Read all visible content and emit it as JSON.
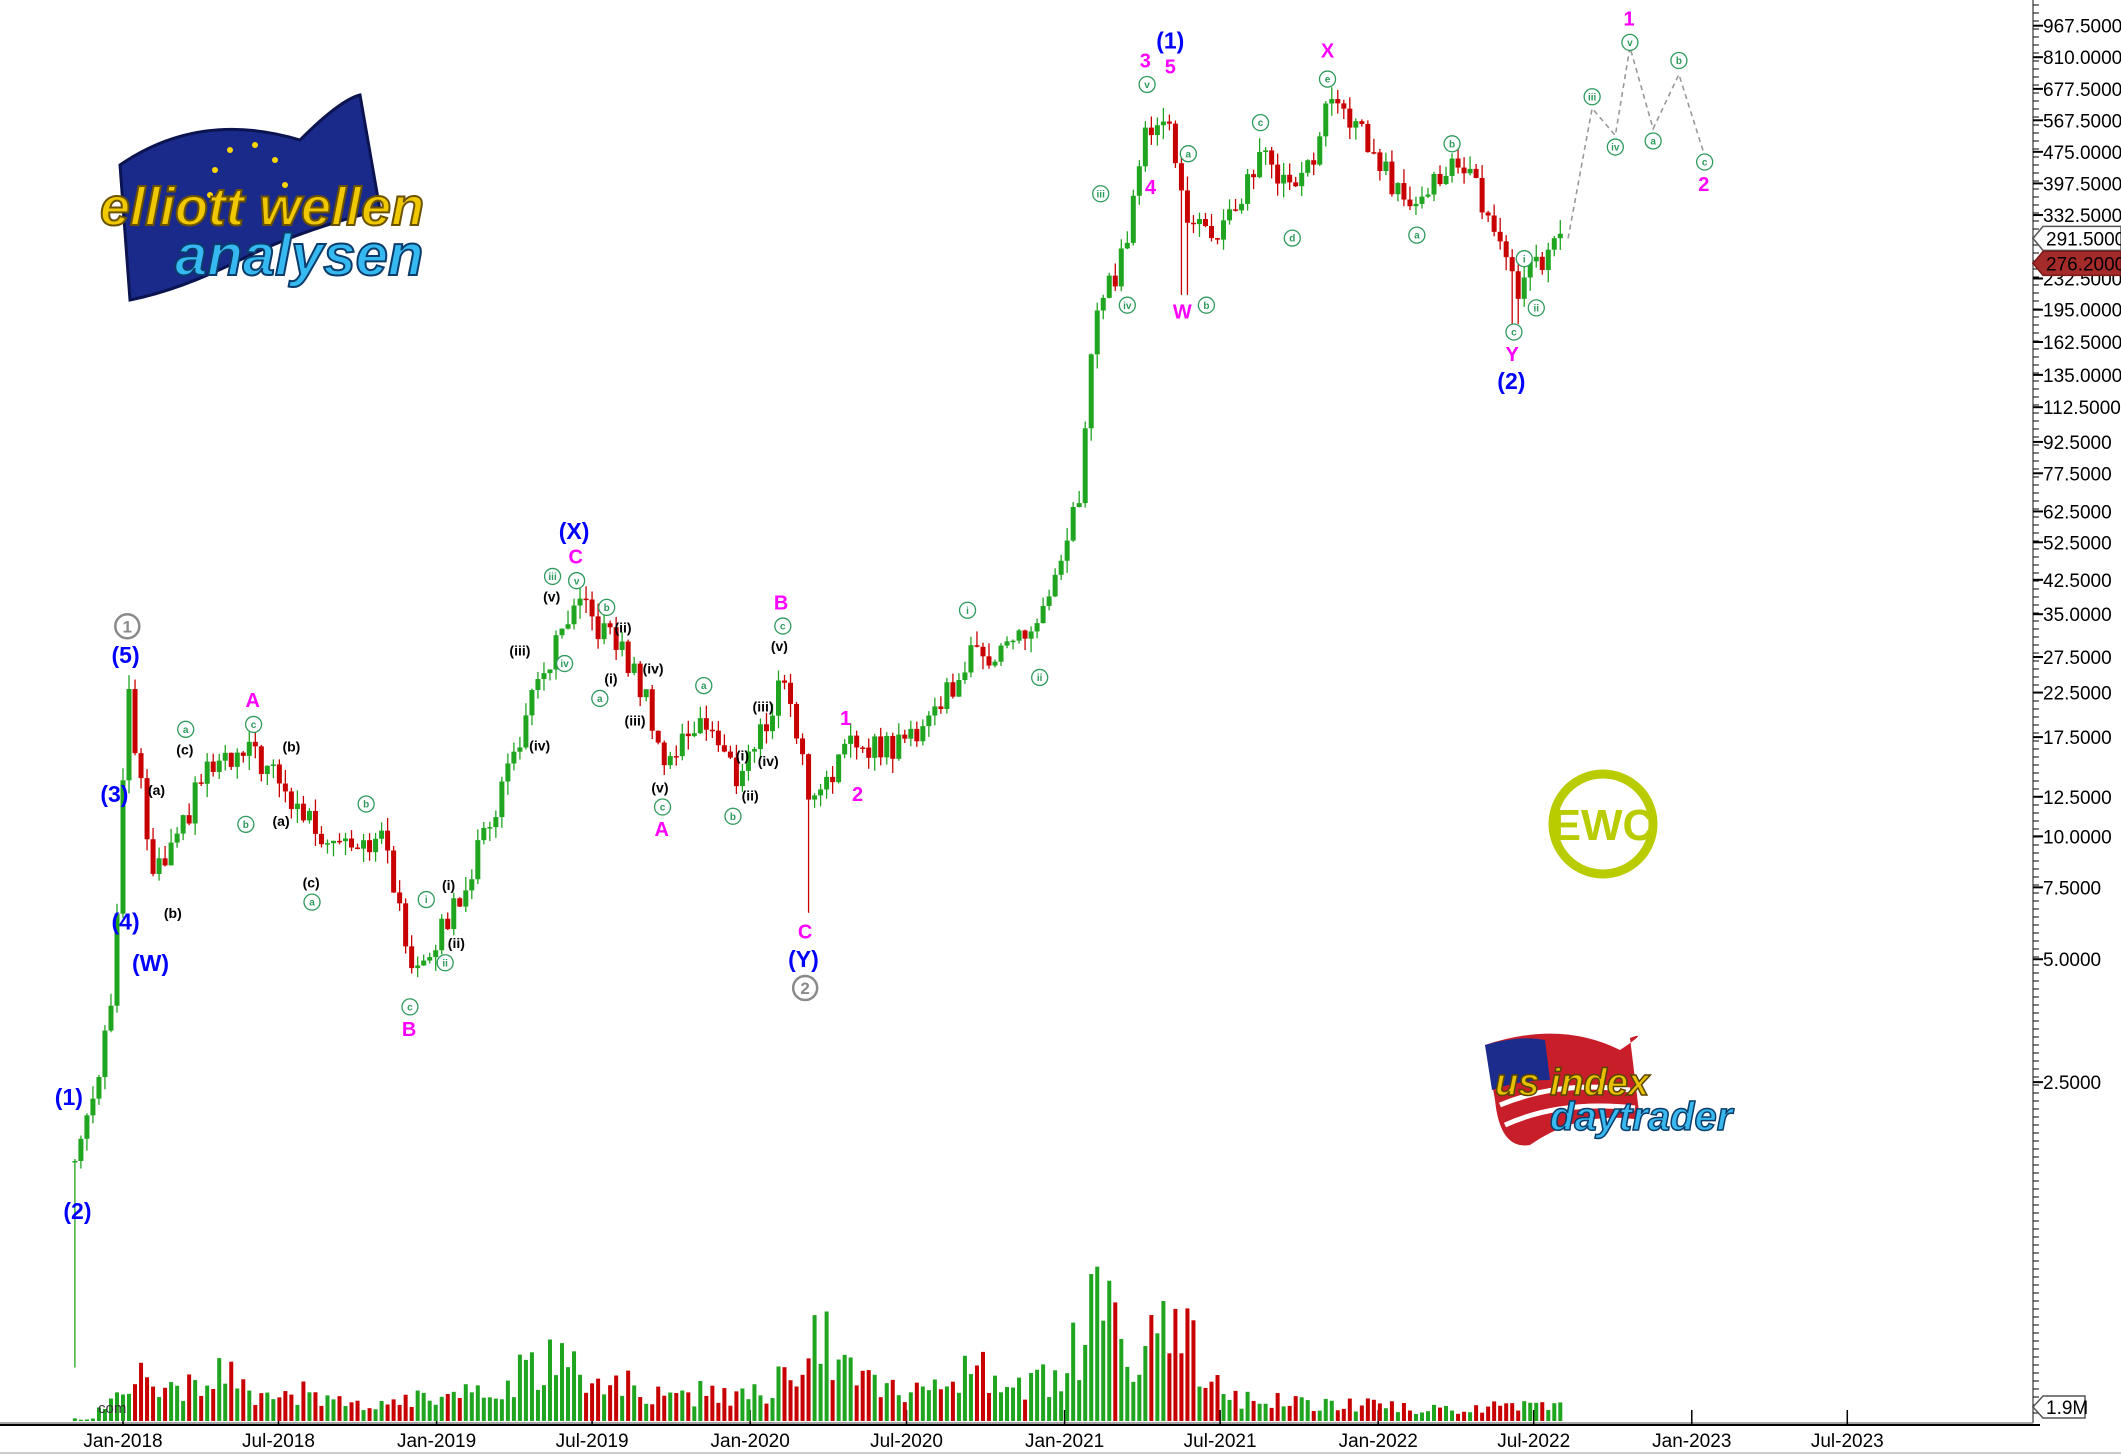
{
  "chart_data": {
    "type": "candlestick",
    "scale": "log",
    "grid": false,
    "price_axis": {
      "side": "right",
      "tick_labels": [
        "967.5000",
        "810.0000",
        "677.5000",
        "567.5000",
        "475.0000",
        "397.5000",
        "332.5000",
        "232.5000",
        "195.0000",
        "162.5000",
        "135.0000",
        "112.5000",
        "92.5000",
        "77.5000",
        "62.5000",
        "52.5000",
        "42.5000",
        "35.0000",
        "27.5000",
        "22.5000",
        "17.5000",
        "12.5000",
        "10.0000",
        "7.5000",
        "5.0000",
        "2.5000"
      ],
      "ylim": [
        0.5,
        1100
      ]
    },
    "date_axis": {
      "tick_labels": [
        "Jan-2018",
        "Jul-2018",
        "Jan-2019",
        "Jul-2019",
        "Jan-2020",
        "Jul-2020",
        "Jan-2021",
        "Jul-2021",
        "Jan-2022",
        "Jul-2022",
        "Jan-2023",
        "Jul-2023"
      ],
      "ticks": [
        "2018-01-01",
        "2018-07-01",
        "2019-01-01",
        "2019-07-01",
        "2020-01-01",
        "2020-07-01",
        "2021-01-01",
        "2021-07-01",
        "2022-01-01",
        "2022-07-01",
        "2023-01-01",
        "2023-07-01"
      ]
    },
    "price_markers": [
      {
        "label": "291.5000",
        "value": 291.5,
        "color": "#ffffff"
      },
      {
        "label": "276.2000",
        "value": 276.2,
        "color": "#a52a2a"
      }
    ],
    "volume_marker": {
      "label": "1.9M",
      "value": 1.9
    },
    "volume_label_partial": "com",
    "price_path": [
      [
        "2017-11-06",
        1.6
      ],
      [
        "2017-12-05",
        2.8
      ],
      [
        "2017-12-22",
        4.6
      ],
      [
        "2018-01-06",
        22.8
      ],
      [
        "2018-02-05",
        7.8
      ],
      [
        "2018-03-05",
        9.5
      ],
      [
        "2018-04-05",
        14.4
      ],
      [
        "2018-05-05",
        15
      ],
      [
        "2018-06-05",
        16
      ],
      [
        "2018-07-10",
        12.5
      ],
      [
        "2018-08-20",
        10.2
      ],
      [
        "2018-09-25",
        10
      ],
      [
        "2018-11-05",
        9.5
      ],
      [
        "2018-11-25",
        5.4
      ],
      [
        "2018-12-05",
        4.9
      ],
      [
        "2019-01-05",
        5.7
      ],
      [
        "2019-02-05",
        7.8
      ],
      [
        "2019-03-05",
        11
      ],
      [
        "2019-04-05",
        17
      ],
      [
        "2019-05-05",
        25
      ],
      [
        "2019-06-05",
        33.4
      ],
      [
        "2019-06-20",
        36
      ],
      [
        "2019-08-05",
        28.5
      ],
      [
        "2019-09-05",
        21
      ],
      [
        "2019-09-25",
        14.8
      ],
      [
        "2019-11-05",
        20
      ],
      [
        "2019-12-15",
        14
      ],
      [
        "2020-01-15",
        18
      ],
      [
        "2020-02-10",
        25
      ],
      [
        "2020-03-10",
        12.5
      ],
      [
        "2020-04-05",
        14.6
      ],
      [
        "2020-05-05",
        17
      ],
      [
        "2020-06-20",
        16.5
      ],
      [
        "2020-07-20",
        19
      ],
      [
        "2020-08-20",
        23
      ],
      [
        "2020-09-10",
        27
      ],
      [
        "2020-10-25",
        29.5
      ],
      [
        "2020-11-25",
        32
      ],
      [
        "2020-12-25",
        42
      ],
      [
        "2021-01-20",
        71.7
      ],
      [
        "2021-02-05",
        193
      ],
      [
        "2021-03-05",
        240
      ],
      [
        "2021-04-05",
        521
      ],
      [
        "2021-05-01",
        630
      ],
      [
        "2021-05-20",
        330
      ],
      [
        "2021-06-15",
        300
      ],
      [
        "2021-07-10",
        310
      ],
      [
        "2021-08-15",
        470
      ],
      [
        "2021-09-20",
        390
      ],
      [
        "2021-10-20",
        470
      ],
      [
        "2021-11-05",
        630
      ],
      [
        "2021-12-15",
        520
      ],
      [
        "2022-01-25",
        370
      ],
      [
        "2022-02-25",
        390
      ],
      [
        "2022-03-25",
        440
      ],
      [
        "2022-04-25",
        390
      ],
      [
        "2022-05-20",
        295
      ],
      [
        "2022-06-10",
        220
      ],
      [
        "2022-07-05",
        245
      ],
      [
        "2022-08-05",
        290
      ]
    ],
    "notable_lows": [
      [
        "2017-11-06",
        0.5
      ],
      [
        "2020-03-10",
        6.5
      ],
      [
        "2021-05-20",
        212
      ],
      [
        "2022-06-10",
        180
      ]
    ],
    "volume_monthly_millions": [
      [
        "2017-11",
        0.3
      ],
      [
        "2017-12",
        3
      ],
      [
        "2018-01",
        6
      ],
      [
        "2018-02",
        4
      ],
      [
        "2018-03",
        5
      ],
      [
        "2018-04",
        7
      ],
      [
        "2018-05",
        6
      ],
      [
        "2018-06",
        4
      ],
      [
        "2018-07",
        4
      ],
      [
        "2018-08",
        3
      ],
      [
        "2018-09",
        2.5
      ],
      [
        "2018-10",
        2
      ],
      [
        "2018-11",
        3
      ],
      [
        "2018-12",
        3.5
      ],
      [
        "2019-01",
        3
      ],
      [
        "2019-02",
        4
      ],
      [
        "2019-03",
        5
      ],
      [
        "2019-04",
        7
      ],
      [
        "2019-05",
        8
      ],
      [
        "2019-06",
        7
      ],
      [
        "2019-07",
        6.5
      ],
      [
        "2019-08",
        5
      ],
      [
        "2019-09",
        4
      ],
      [
        "2019-10",
        3.5
      ],
      [
        "2019-11",
        4
      ],
      [
        "2019-12",
        3.5
      ],
      [
        "2020-01",
        4
      ],
      [
        "2020-02",
        6
      ],
      [
        "2020-03",
        11
      ],
      [
        "2020-04",
        7
      ],
      [
        "2020-05",
        5
      ],
      [
        "2020-06",
        4
      ],
      [
        "2020-07",
        5
      ],
      [
        "2020-08",
        6
      ],
      [
        "2020-09",
        8
      ],
      [
        "2020-10",
        4.5
      ],
      [
        "2020-11",
        5
      ],
      [
        "2020-12",
        6
      ],
      [
        "2021-01",
        10
      ],
      [
        "2021-02",
        16
      ],
      [
        "2021-03",
        8
      ],
      [
        "2021-04",
        12
      ],
      [
        "2021-05",
        14
      ],
      [
        "2021-06",
        5
      ],
      [
        "2021-07",
        3
      ],
      [
        "2021-08",
        3
      ],
      [
        "2021-09",
        2.8
      ],
      [
        "2021-10",
        2.5
      ],
      [
        "2021-11",
        2.5
      ],
      [
        "2021-12",
        2.2
      ],
      [
        "2022-01",
        2
      ],
      [
        "2022-02",
        1.8
      ],
      [
        "2022-03",
        1.6
      ],
      [
        "2022-04",
        1.8
      ],
      [
        "2022-05",
        2
      ],
      [
        "2022-06",
        2.2
      ],
      [
        "2022-07",
        1.9
      ],
      [
        "2022-08",
        1.5
      ]
    ],
    "projection": [
      [
        "2022-08-10",
        291.5
      ],
      [
        "2022-09-07",
        607
      ],
      [
        "2022-10-04",
        521
      ],
      [
        "2022-10-21",
        857
      ],
      [
        "2022-11-17",
        541
      ],
      [
        "2022-12-17",
        735
      ],
      [
        "2023-01-16",
        465
      ]
    ],
    "colors": {
      "up": "#1fa51f",
      "down": "#c80000",
      "degree_blue": "#0000ff",
      "degree_magenta": "#ff00ff",
      "degree_black": "#000000",
      "degree_green": "#2e9a5c",
      "degree_gray": "#8a8a8a",
      "projection": "#999999"
    },
    "annotations": [
      {
        "text": "(1)",
        "date": "2017-10-30",
        "price": 2.3,
        "style": "blue"
      },
      {
        "text": "(2)",
        "date": "2017-11-09",
        "price": 1.21,
        "style": "blue"
      },
      {
        "text": "(3)",
        "date": "2017-12-22",
        "price": 12.7,
        "style": "blue"
      },
      {
        "text": "(4)",
        "date": "2018-01-04",
        "price": 6.2,
        "style": "blue"
      },
      {
        "text": "(5)",
        "date": "2018-01-04",
        "price": 28,
        "style": "blue"
      },
      {
        "text": "(W)",
        "date": "2018-02-02",
        "price": 4.9,
        "style": "blue"
      },
      {
        "text": "(X)",
        "date": "2019-06-10",
        "price": 56,
        "style": "blue"
      },
      {
        "text": "(Y)",
        "date": "2020-03-03",
        "price": 5,
        "style": "blue"
      },
      {
        "text": "(1)",
        "date": "2021-05-04",
        "price": 885,
        "style": "blue"
      },
      {
        "text": "(2)",
        "date": "2022-06-05",
        "price": 132,
        "style": "blue"
      },
      {
        "text": "1",
        "date": "2018-01-06",
        "price": 32.5,
        "style": "gray-circle"
      },
      {
        "text": "2",
        "date": "2020-03-05",
        "price": 4.3,
        "style": "gray-circle"
      },
      {
        "text": "A",
        "date": "2018-06-01",
        "price": 21.6,
        "style": "magenta"
      },
      {
        "text": "B",
        "date": "2018-11-30",
        "price": 3.4,
        "style": "magenta"
      },
      {
        "text": "C",
        "date": "2019-06-12",
        "price": 48,
        "style": "magenta"
      },
      {
        "text": "A",
        "date": "2019-09-20",
        "price": 10.5,
        "style": "magenta"
      },
      {
        "text": "B",
        "date": "2020-02-06",
        "price": 37,
        "style": "magenta"
      },
      {
        "text": "C",
        "date": "2020-03-05",
        "price": 5.8,
        "style": "magenta"
      },
      {
        "text": "1",
        "date": "2020-04-21",
        "price": 19.5,
        "style": "magenta"
      },
      {
        "text": "2",
        "date": "2020-05-05",
        "price": 12.7,
        "style": "magenta"
      },
      {
        "text": "3",
        "date": "2021-04-05",
        "price": 790,
        "style": "magenta"
      },
      {
        "text": "5",
        "date": "2021-05-04",
        "price": 777,
        "style": "magenta"
      },
      {
        "text": "4",
        "date": "2021-04-11",
        "price": 390,
        "style": "magenta"
      },
      {
        "text": "W",
        "date": "2021-05-18",
        "price": 193,
        "style": "magenta"
      },
      {
        "text": "X",
        "date": "2021-11-03",
        "price": 842,
        "style": "magenta"
      },
      {
        "text": "Y",
        "date": "2022-06-06",
        "price": 154,
        "style": "magenta"
      },
      {
        "text": "1",
        "date": "2022-10-20",
        "price": 1005,
        "style": "magenta"
      },
      {
        "text": "2",
        "date": "2023-01-15",
        "price": 400,
        "style": "magenta"
      },
      {
        "text": "(a)",
        "date": "2018-02-09",
        "price": 13,
        "style": "black"
      },
      {
        "text": "(b)",
        "date": "2018-02-28",
        "price": 6.5,
        "style": "black"
      },
      {
        "text": "(c)",
        "date": "2018-03-14",
        "price": 16.6,
        "style": "black"
      },
      {
        "text": "(b)",
        "date": "2018-07-16",
        "price": 16.6,
        "style": "black"
      },
      {
        "text": "(a)",
        "date": "2018-07-04",
        "price": 10.9,
        "style": "black"
      },
      {
        "text": "(c)",
        "date": "2018-08-08",
        "price": 7.7,
        "style": "black"
      },
      {
        "text": "(i)",
        "date": "2019-01-15",
        "price": 7.6,
        "style": "black"
      },
      {
        "text": "(ii)",
        "date": "2019-01-24",
        "price": 5.4,
        "style": "black"
      },
      {
        "text": "(iii)",
        "date": "2019-04-08",
        "price": 28.5,
        "style": "black"
      },
      {
        "text": "(iv)",
        "date": "2019-05-01",
        "price": 16.7,
        "style": "black"
      },
      {
        "text": "(v)",
        "date": "2019-05-15",
        "price": 39,
        "style": "black"
      },
      {
        "text": "(ii)",
        "date": "2019-08-06",
        "price": 33.5,
        "style": "black"
      },
      {
        "text": "(i)",
        "date": "2019-07-23",
        "price": 24,
        "style": "black"
      },
      {
        "text": "(iv)",
        "date": "2019-09-10",
        "price": 25.8,
        "style": "black"
      },
      {
        "text": "(iii)",
        "date": "2019-08-20",
        "price": 19.2,
        "style": "black"
      },
      {
        "text": "(v)",
        "date": "2019-09-18",
        "price": 13.1,
        "style": "black"
      },
      {
        "text": "(iii)",
        "date": "2020-01-16",
        "price": 20.8,
        "style": "black"
      },
      {
        "text": "(v)",
        "date": "2020-02-04",
        "price": 29.8,
        "style": "black"
      },
      {
        "text": "(i)",
        "date": "2019-12-23",
        "price": 15.8,
        "style": "black"
      },
      {
        "text": "(ii)",
        "date": "2020-01-01",
        "price": 12.6,
        "style": "black"
      },
      {
        "text": "(iv)",
        "date": "2020-01-22",
        "price": 15.3,
        "style": "black"
      },
      {
        "text": "a",
        "date": "2018-03-15",
        "price": 18,
        "style": "green-circle"
      },
      {
        "text": "b",
        "date": "2018-05-24",
        "price": 10.7,
        "style": "green-circle"
      },
      {
        "text": "c",
        "date": "2018-06-02",
        "price": 18.8,
        "style": "green-circle"
      },
      {
        "text": "b",
        "date": "2018-10-11",
        "price": 12,
        "style": "green-circle"
      },
      {
        "text": "a",
        "date": "2018-08-09",
        "price": 6.9,
        "style": "green-circle"
      },
      {
        "text": "i",
        "date": "2018-12-20",
        "price": 7,
        "style": "green-circle"
      },
      {
        "text": "ii",
        "date": "2019-01-11",
        "price": 4.98,
        "style": "green-circle"
      },
      {
        "text": "c",
        "date": "2018-12-01",
        "price": 3.8,
        "style": "green-circle"
      },
      {
        "text": "iii",
        "date": "2019-05-16",
        "price": 43,
        "style": "green-circle"
      },
      {
        "text": "v",
        "date": "2019-06-13",
        "price": 42.7,
        "style": "green-circle"
      },
      {
        "text": "iv",
        "date": "2019-05-30",
        "price": 26.5,
        "style": "green-circle"
      },
      {
        "text": "b",
        "date": "2019-07-18",
        "price": 35.3,
        "style": "green-circle"
      },
      {
        "text": "a",
        "date": "2019-07-10",
        "price": 22.1,
        "style": "green-circle"
      },
      {
        "text": "a",
        "date": "2019-11-08",
        "price": 23.4,
        "style": "green-circle"
      },
      {
        "text": "c",
        "date": "2019-09-21",
        "price": 11.8,
        "style": "green-circle"
      },
      {
        "text": "b",
        "date": "2019-12-12",
        "price": 11.2,
        "style": "green-circle"
      },
      {
        "text": "c",
        "date": "2020-02-08",
        "price": 32.5,
        "style": "green-circle"
      },
      {
        "text": "i",
        "date": "2020-09-10",
        "price": 35.8,
        "style": "green-circle"
      },
      {
        "text": "ii",
        "date": "2020-12-03",
        "price": 24.5,
        "style": "green-circle"
      },
      {
        "text": "iii",
        "date": "2021-02-12",
        "price": 375,
        "style": "green-circle"
      },
      {
        "text": "iv",
        "date": "2021-03-15",
        "price": 200,
        "style": "green-circle"
      },
      {
        "text": "v",
        "date": "2021-04-07",
        "price": 700,
        "style": "green-circle"
      },
      {
        "text": "a",
        "date": "2021-05-25",
        "price": 470,
        "style": "green-circle"
      },
      {
        "text": "b",
        "date": "2021-06-15",
        "price": 200,
        "style": "green-circle"
      },
      {
        "text": "c",
        "date": "2021-08-17",
        "price": 560,
        "style": "green-circle"
      },
      {
        "text": "d",
        "date": "2021-09-23",
        "price": 292,
        "style": "green-circle"
      },
      {
        "text": "e",
        "date": "2021-11-03",
        "price": 716,
        "style": "green-circle"
      },
      {
        "text": "b",
        "date": "2022-03-28",
        "price": 497,
        "style": "green-circle"
      },
      {
        "text": "a",
        "date": "2022-02-15",
        "price": 297,
        "style": "green-circle"
      },
      {
        "text": "i",
        "date": "2022-06-20",
        "price": 260,
        "style": "green-circle"
      },
      {
        "text": "ii",
        "date": "2022-07-04",
        "price": 197,
        "style": "green-circle"
      },
      {
        "text": "c",
        "date": "2022-06-08",
        "price": 168,
        "style": "green-circle"
      },
      {
        "text": "iii",
        "date": "2022-09-07",
        "price": 648,
        "style": "green-circle"
      },
      {
        "text": "iv",
        "date": "2022-10-04",
        "price": 488,
        "style": "green-circle"
      },
      {
        "text": "v",
        "date": "2022-10-21",
        "price": 884,
        "style": "green-circle"
      },
      {
        "text": "a",
        "date": "2022-11-17",
        "price": 505,
        "style": "green-circle"
      },
      {
        "text": "b",
        "date": "2022-12-17",
        "price": 795,
        "style": "green-circle"
      },
      {
        "text": "c",
        "date": "2023-01-16",
        "price": 445,
        "style": "green-circle"
      }
    ]
  },
  "logos": {
    "elliott": {
      "line1": "elliott wellen",
      "line2": "analysen"
    },
    "ewc": {
      "text": "EWC"
    },
    "usindex": {
      "line1": "us index",
      "line2": "daytrader"
    }
  }
}
